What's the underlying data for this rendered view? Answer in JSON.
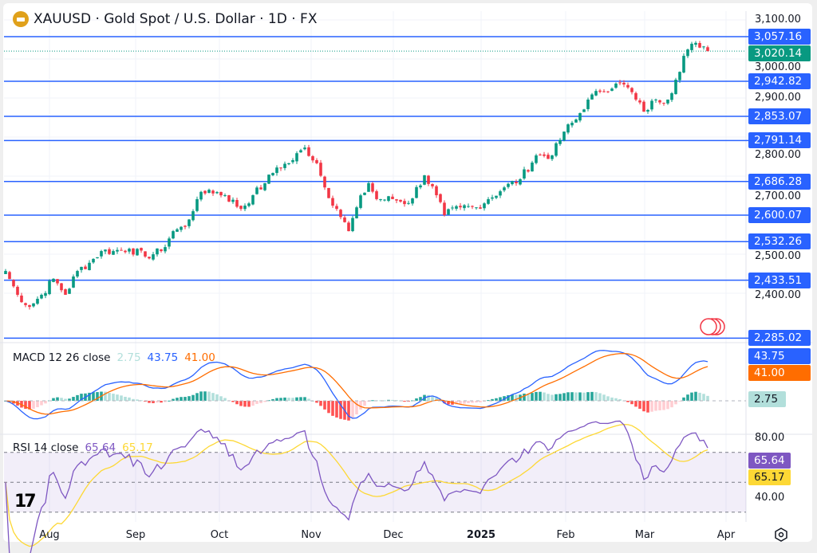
{
  "header": {
    "title": "XAUUSD · Gold Spot / U.S. Dollar · 1D · FX"
  },
  "price_axis": [
    "3,100.00",
    "3,000.00",
    "2,900.00",
    "2,800.00",
    "2,700.00",
    "2,500.00",
    "2,400.00"
  ],
  "levels": [
    "3,057.16",
    "2,942.82",
    "2,853.07",
    "2,791.14",
    "2,686.28",
    "2,600.07",
    "2,532.26",
    "2,433.51",
    "2,285.02"
  ],
  "current_price": "3,020.14",
  "macd": {
    "label": "MACD 12 26 close",
    "hist": "2.75",
    "macd": "43.75",
    "signal": "41.00"
  },
  "rsi": {
    "label": "RSI 14 close",
    "rsi": "65.64",
    "ma": "65.17",
    "axis": [
      "80.00",
      "40.00"
    ]
  },
  "time_axis": [
    "Aug",
    "Sep",
    "Oct",
    "Nov",
    "Dec",
    "2025",
    "Feb",
    "Mar",
    "Apr"
  ],
  "colors": {
    "up": "#089981",
    "down": "#f23645",
    "level": "#2962ff",
    "macd": "#2962ff",
    "signal": "#ff6d00",
    "rsi": "#7e57c2",
    "rsi_ma": "#fdd835"
  },
  "chart_data": {
    "type": "candlestick",
    "title": "XAUUSD · Gold Spot / U.S. Dollar · 1D · FX",
    "ylim": [
      2250,
      3110
    ],
    "levels": [
      3057.16,
      2942.82,
      2853.07,
      2791.14,
      2686.28,
      2600.07,
      2532.26,
      2433.51,
      2285.02
    ],
    "last": 3020.14,
    "close_keypoints_day_price": [
      [
        0,
        2457
      ],
      [
        3,
        2396
      ],
      [
        6,
        2365
      ],
      [
        9,
        2396
      ],
      [
        12,
        2437
      ],
      [
        15,
        2396
      ],
      [
        18,
        2457
      ],
      [
        21,
        2478
      ],
      [
        24,
        2508
      ],
      [
        27,
        2508
      ],
      [
        31,
        2514
      ],
      [
        35,
        2494
      ],
      [
        39,
        2508
      ],
      [
        42,
        2559
      ],
      [
        45,
        2570
      ],
      [
        48,
        2641
      ],
      [
        51,
        2665
      ],
      [
        55,
        2651
      ],
      [
        59,
        2616
      ],
      [
        62,
        2651
      ],
      [
        65,
        2682
      ],
      [
        68,
        2722
      ],
      [
        71,
        2733
      ],
      [
        75,
        2773
      ],
      [
        78,
        2733
      ],
      [
        80,
        2671
      ],
      [
        83,
        2616
      ],
      [
        86,
        2559
      ],
      [
        88,
        2620
      ],
      [
        91,
        2682
      ],
      [
        93,
        2641
      ],
      [
        97,
        2641
      ],
      [
        101,
        2631
      ],
      [
        105,
        2702
      ],
      [
        108,
        2651
      ],
      [
        110,
        2600
      ],
      [
        114,
        2620
      ],
      [
        118,
        2620
      ],
      [
        121,
        2641
      ],
      [
        125,
        2671
      ],
      [
        129,
        2692
      ],
      [
        133,
        2753
      ],
      [
        137,
        2753
      ],
      [
        140,
        2814
      ],
      [
        143,
        2845
      ],
      [
        146,
        2896
      ],
      [
        149,
        2916
      ],
      [
        153,
        2937
      ],
      [
        156,
        2927
      ],
      [
        158,
        2896
      ],
      [
        160,
        2865
      ],
      [
        163,
        2896
      ],
      [
        166,
        2896
      ],
      [
        168,
        2947
      ],
      [
        170,
        3008
      ],
      [
        172,
        3039
      ],
      [
        174,
        3029
      ],
      [
        176,
        3020
      ]
    ],
    "macd_last": {
      "macd": 43.75,
      "signal": 41.0,
      "hist": 2.75
    },
    "rsi_last": {
      "rsi": 65.64,
      "ma": 65.17
    },
    "rsi_ylim": [
      20,
      90
    ]
  }
}
